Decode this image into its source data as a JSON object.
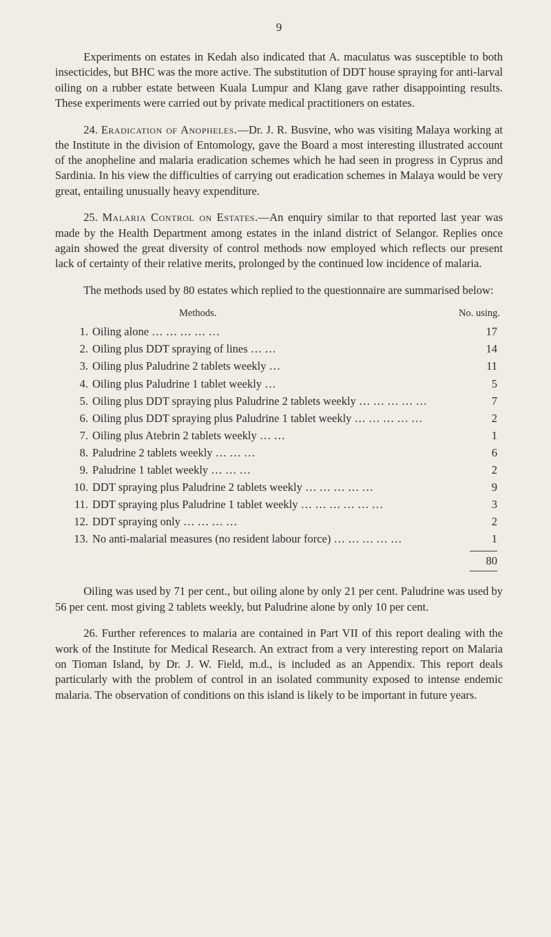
{
  "page_number": "9",
  "para1": "Experiments on estates in Kedah also indicated that A. maculatus was susceptible to both insecticides, but BHC was the more active. The substitution of DDT house spraying for anti-larval oiling on a rubber estate between Kuala Lumpur and Klang gave rather disappointing results. These experiments were carried out by private medical practitioners on estates.",
  "para2_num": "24.  ",
  "para2_lead": "Eradication of Anopheles.",
  "para2_body": "—Dr. J. R. Busvine, who was visiting Malaya working at the Institute in the division of Entomology, gave the Board a most interesting illustrated account of the anopheline and malaria eradication schemes which he had seen in progress in Cyprus and Sardinia. In his view the difficulties of carrying out eradication schemes in Malaya would be very great, entailing unusually heavy expenditure.",
  "para3_num": "25.  ",
  "para3_lead": "Malaria Control on Estates.",
  "para3_body": "—An enquiry similar to that reported last year was made by the Health Department among estates in the inland district of Selangor. Replies once again showed the great diversity of control methods now employed which reflects our present lack of certainty of their relative merits, prolonged by the continued low incidence of malaria.",
  "para4": "The methods used by 80 estates which replied to the questionnaire are summarised below:",
  "methods_header_left": "Methods.",
  "methods_header_right": "No. using.",
  "methods": [
    {
      "n": "1.",
      "label": "Oiling alone   …   …   …   …   …",
      "v": "17"
    },
    {
      "n": "2.",
      "label": "Oiling plus DDT spraying of lines …   …",
      "v": "14"
    },
    {
      "n": "3.",
      "label": "Oiling plus Paludrine 2 tablets weekly   …",
      "v": "11"
    },
    {
      "n": "4.",
      "label": "Oiling plus Paludrine 1 tablet weekly   …",
      "v": "5"
    },
    {
      "n": "5.",
      "label": "Oiling plus DDT spraying plus Paludrine 2 tablets weekly …   …   …   …   …",
      "v": "7"
    },
    {
      "n": "6.",
      "label": "Oiling plus DDT spraying plus Paludrine 1 tablet weekly   …   …   …   …   …",
      "v": "2"
    },
    {
      "n": "7.",
      "label": "Oiling plus Atebrin 2 tablets weekly …   …",
      "v": "1"
    },
    {
      "n": "8.",
      "label": "Paludrine 2 tablets weekly   …   …   …",
      "v": "6"
    },
    {
      "n": "9.",
      "label": "Paludrine 1 tablet weekly   …   …   …",
      "v": "2"
    },
    {
      "n": "10.",
      "label": "DDT spraying plus Paludrine 2 tablets weekly   …   …   …   …   …",
      "v": "9"
    },
    {
      "n": "11.",
      "label": "DDT spraying plus Paludrine 1 tablet weekly   …   …   …   …   …   …",
      "v": "3"
    },
    {
      "n": "12.",
      "label": "DDT spraying only   …   …   …   …",
      "v": "2"
    },
    {
      "n": "13.",
      "label": "No anti-malarial measures (no resident labour force)   …   …   …   …   …",
      "v": "1"
    }
  ],
  "methods_total": "80",
  "para5": "Oiling was used by 71 per cent., but oiling alone by only 21 per cent. Paludrine was used by 56 per cent. most giving 2 tablets weekly, but Paludrine alone by only 10 per cent.",
  "para6": "26.  Further references to malaria are contained in Part VII of this report dealing with the work of the Institute for Medical Research. An extract from a very interesting report on Malaria on Tioman Island, by Dr. J. W. Field, m.d., is included as an Appendix. This report deals particularly with the problem of control in an isolated community exposed to intense endemic malaria. The observation of conditions on this island is likely to be important in future years."
}
